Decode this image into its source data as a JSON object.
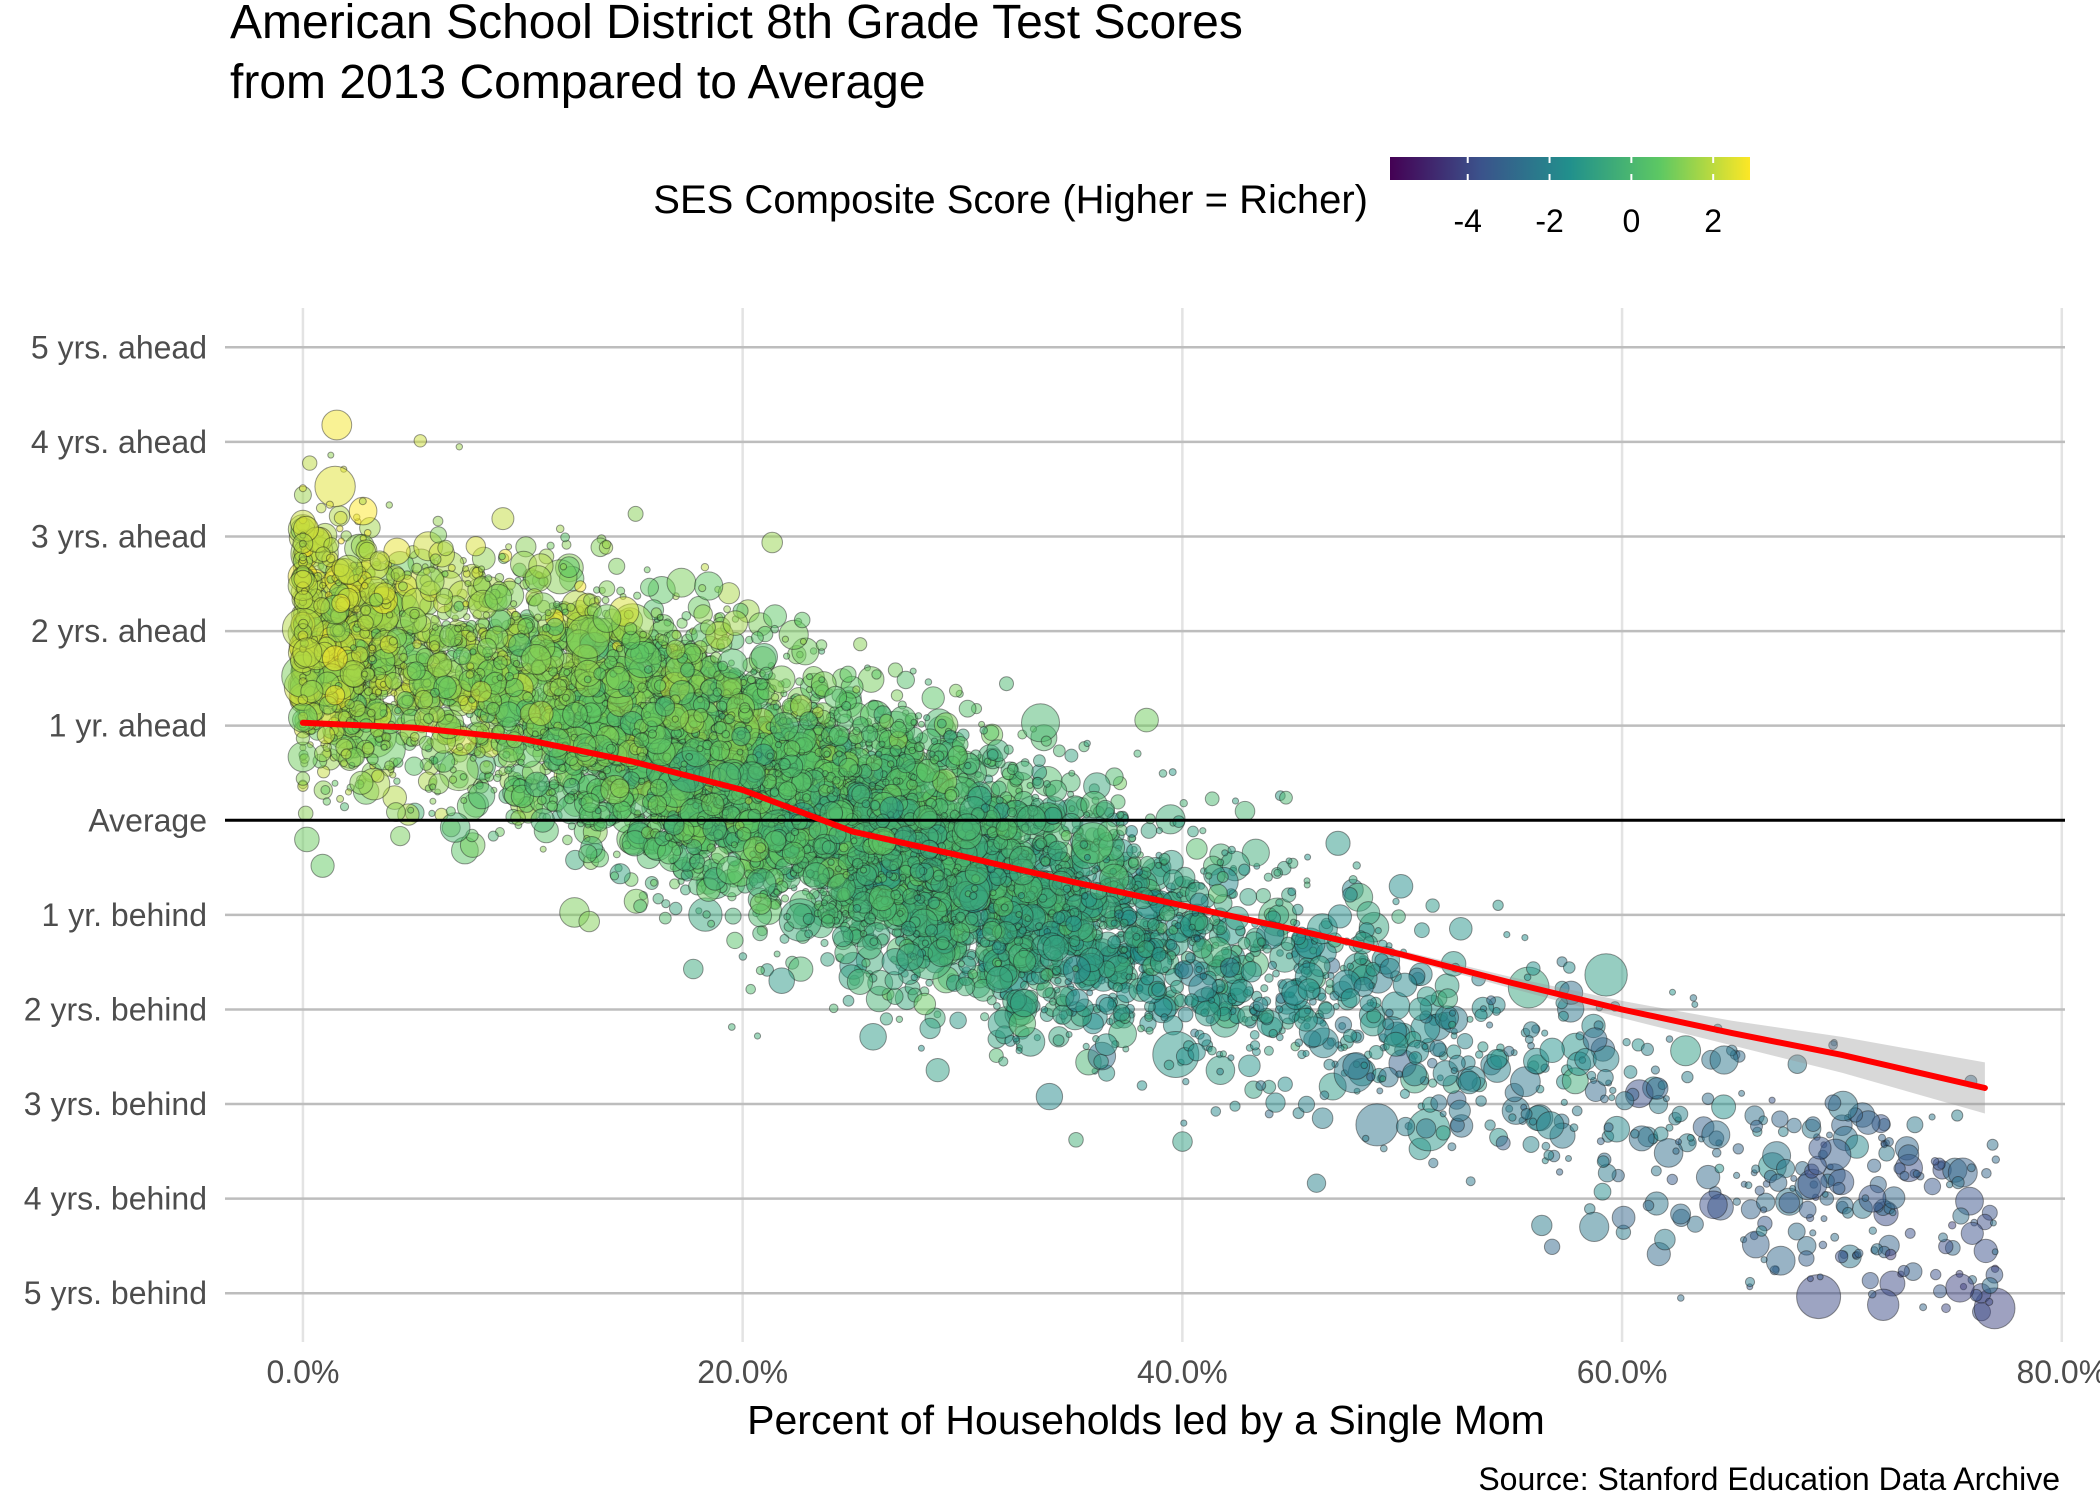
{
  "chart_data": {
    "type": "scatter",
    "title_lines": [
      "American School District 8th Grade Test Scores",
      "from 2013 Compared to Average"
    ],
    "legend": {
      "title": "SES Composite Score (Higher = Richer)",
      "ticks": [
        -4,
        -2,
        0,
        2
      ],
      "tick_labels": [
        "-4",
        "-2",
        "0",
        "2"
      ],
      "range": [
        -5.9,
        2.9
      ],
      "colors": [
        "#440154",
        "#3b528b",
        "#21908c",
        "#5dc863",
        "#fde725"
      ]
    },
    "xlabel": "Percent of Households led by a Single Mom",
    "x_ticks": [
      0,
      20,
      40,
      60,
      80
    ],
    "x_tick_labels": [
      "0.0%",
      "20.0%",
      "40.0%",
      "60.0%",
      "80.0%"
    ],
    "xlim": [
      -4,
      80.6
    ],
    "ylim": [
      -5.6,
      5.5
    ],
    "y_ticks": [
      5,
      4,
      3,
      2,
      1,
      0,
      -1,
      -2,
      -3,
      -4,
      -5
    ],
    "y_tick_labels": [
      "5 yrs. ahead",
      "4 yrs. ahead",
      "3 yrs. ahead",
      "2 yrs. ahead",
      "1 yr. ahead",
      "Average",
      "1 yr. behind",
      "2 yrs. behind",
      "3 yrs. behind",
      "4 yrs. behind",
      "5 yrs. behind"
    ],
    "reference_line_y": 0,
    "trend": {
      "x": [
        0,
        5,
        10,
        15,
        20,
        25,
        30,
        35,
        40,
        45,
        50,
        55,
        60,
        65,
        70,
        76.5
      ],
      "y": [
        1.03,
        0.98,
        0.86,
        0.62,
        0.32,
        -0.12,
        -0.38,
        -0.65,
        -0.9,
        -1.15,
        -1.42,
        -1.72,
        -2.0,
        -2.25,
        -2.48,
        -2.83
      ],
      "se": [
        0.03,
        0.02,
        0.02,
        0.02,
        0.02,
        0.02,
        0.02,
        0.02,
        0.03,
        0.03,
        0.04,
        0.06,
        0.09,
        0.13,
        0.19,
        0.27
      ],
      "color": "#ff0000"
    },
    "points_note": "Approximately 8000 school districts; individual points are synthesized from the visible distribution",
    "n_points": 8000,
    "caption": "Source: Stanford Education Data Archive"
  }
}
